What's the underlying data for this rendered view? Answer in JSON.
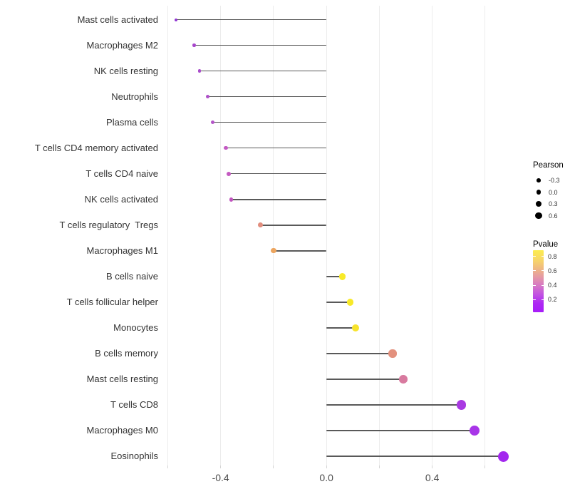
{
  "figure": {
    "background": "#ffffff",
    "title": ""
  },
  "chart_data": {
    "type": "lollipop",
    "orientation": "horizontal",
    "title": "",
    "xlabel": "",
    "ylabel": "",
    "xlim": [
      -0.62,
      0.7
    ],
    "x_tick_labels": [
      {
        "value": -0.4,
        "label": "-0.4"
      },
      {
        "value": 0.0,
        "label": "0.0"
      },
      {
        "value": 0.4,
        "label": "0.4"
      }
    ],
    "x_gridlines": [
      -0.6,
      -0.4,
      -0.2,
      0.0,
      0.2,
      0.4,
      0.6
    ],
    "grid": "vertical-only",
    "gridline_color": "#ececec",
    "stem_color": "#595959",
    "baseline_x": 0.0,
    "points": [
      {
        "label": "Mast cells activated",
        "pearson": -0.57,
        "pvalue": 0.06,
        "color": "#9136d2"
      },
      {
        "label": "Macrophages M2",
        "pearson": -0.5,
        "pvalue": 0.17,
        "color": "#a746cb"
      },
      {
        "label": "NK cells resting",
        "pearson": -0.48,
        "pvalue": 0.18,
        "color": "#a94ccb"
      },
      {
        "label": "Neutrophils",
        "pearson": -0.45,
        "pvalue": 0.2,
        "color": "#af50c9"
      },
      {
        "label": "Plasma cells",
        "pearson": -0.43,
        "pvalue": 0.22,
        "color": "#b455c8"
      },
      {
        "label": "T cells CD4 memory activated",
        "pearson": -0.38,
        "pvalue": 0.27,
        "color": "#c35ac3"
      },
      {
        "label": "T cells CD4 naive",
        "pearson": -0.37,
        "pvalue": 0.28,
        "color": "#c45ac1"
      },
      {
        "label": "NK cells activated",
        "pearson": -0.36,
        "pvalue": 0.27,
        "color": "#c154bf"
      },
      {
        "label": "T cells regulatory  Tregs",
        "pearson": -0.25,
        "pvalue": 0.52,
        "color": "#e18e7e"
      },
      {
        "label": "Macrophages M1",
        "pearson": -0.2,
        "pvalue": 0.61,
        "color": "#eca55f"
      },
      {
        "label": "B cells naive",
        "pearson": 0.06,
        "pvalue": 0.86,
        "color": "#f8ea28"
      },
      {
        "label": "T cells follicular helper",
        "pearson": 0.09,
        "pvalue": 0.86,
        "color": "#f8e928"
      },
      {
        "label": "Monocytes",
        "pearson": 0.11,
        "pvalue": 0.84,
        "color": "#f7e32c"
      },
      {
        "label": "B cells memory",
        "pearson": 0.25,
        "pvalue": 0.52,
        "color": "#e3917e"
      },
      {
        "label": "Mast cells resting",
        "pearson": 0.29,
        "pvalue": 0.42,
        "color": "#d87a9f"
      },
      {
        "label": "T cells CD8",
        "pearson": 0.51,
        "pvalue": 0.09,
        "color": "#a93ae2"
      },
      {
        "label": "Macrophages M0",
        "pearson": 0.56,
        "pvalue": 0.08,
        "color": "#a835e8"
      },
      {
        "label": "Eosinophils",
        "pearson": 0.67,
        "pvalue": 0.05,
        "color": "#a328ee"
      }
    ]
  },
  "legend": {
    "pearson": {
      "title": "Pearson",
      "key_color": "#000000",
      "items": [
        {
          "label": "-0.3",
          "value": -0.3
        },
        {
          "label": "0.0",
          "value": 0.0
        },
        {
          "label": "0.3",
          "value": 0.3
        },
        {
          "label": "0.6",
          "value": 0.6
        }
      ]
    },
    "pvalue": {
      "title": "Pvalue",
      "ticks": [
        {
          "label": "0.8",
          "value": 0.8
        },
        {
          "label": "0.6",
          "value": 0.6
        },
        {
          "label": "0.4",
          "value": 0.4
        },
        {
          "label": "0.2",
          "value": 0.2
        }
      ],
      "range": [
        0.02,
        0.88
      ],
      "gradient_top_to_bottom": [
        "#fcec4e",
        "#f8d966",
        "#f0bb80",
        "#e59aa4",
        "#d678c6",
        "#c152e2",
        "#ad29f3",
        "#a71df8"
      ]
    }
  }
}
